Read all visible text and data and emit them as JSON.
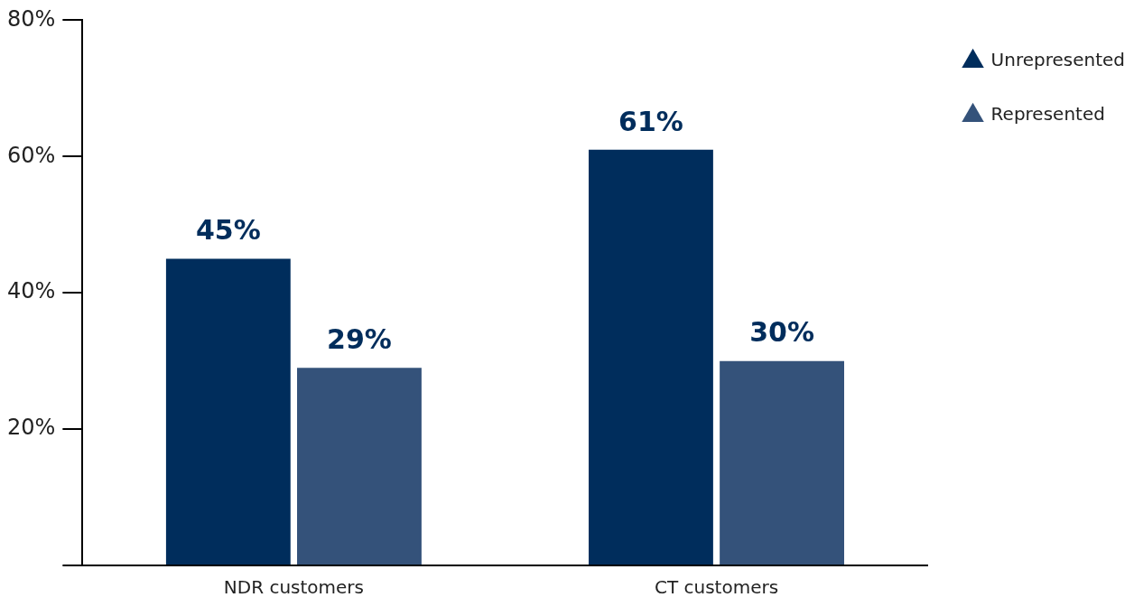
{
  "chart_data": {
    "type": "bar",
    "categories": [
      "NDR customers",
      "CT customers"
    ],
    "series": [
      {
        "name": "Unrepresented",
        "color": "#002d5c",
        "values": [
          45,
          61
        ],
        "value_labels": [
          "45%",
          "61%"
        ]
      },
      {
        "name": "Represented",
        "color": "#34527a",
        "values": [
          29,
          30
        ],
        "value_labels": [
          "29%",
          "30%"
        ]
      }
    ],
    "ylim": [
      0,
      80
    ],
    "yticks": [
      {
        "value": 0,
        "label": null
      },
      {
        "value": 20,
        "label": "20%"
      },
      {
        "value": 40,
        "label": "40%"
      },
      {
        "value": 60,
        "label": "60%"
      },
      {
        "value": 80,
        "label": "80%"
      }
    ],
    "grid": false,
    "legend": "top right"
  }
}
